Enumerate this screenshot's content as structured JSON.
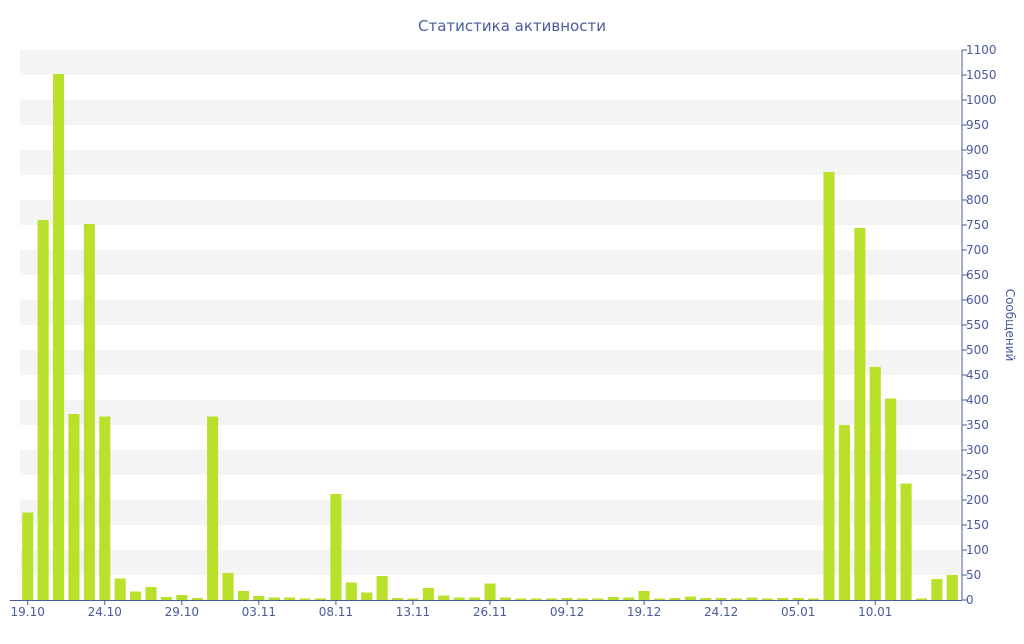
{
  "chart_data": {
    "type": "bar",
    "title": "Статистика активности",
    "ylabel": "Сообщений",
    "xlabel": "",
    "ylim": [
      0,
      1100
    ],
    "y_ticks": [
      0,
      50,
      100,
      150,
      200,
      250,
      300,
      350,
      400,
      450,
      500,
      550,
      600,
      650,
      700,
      750,
      800,
      850,
      900,
      950,
      1000,
      1050,
      1100
    ],
    "y_axis_side": "right",
    "grid": "alternating horizontal bands",
    "x_tick_labels": [
      "19.10",
      "24.10",
      "29.10",
      "03.11",
      "08.11",
      "13.11",
      "26.11",
      "09.12",
      "19.12",
      "24.12",
      "05.01",
      "10.01"
    ],
    "x_tick_indices": [
      0,
      5,
      10,
      15,
      20,
      25,
      30,
      35,
      40,
      45,
      50,
      55
    ],
    "values": [
      175,
      760,
      1052,
      372,
      752,
      367,
      43,
      17,
      26,
      6,
      10,
      4,
      367,
      54,
      18,
      8,
      5,
      5,
      3,
      3,
      212,
      35,
      15,
      48,
      4,
      3,
      24,
      9,
      5,
      5,
      33,
      5,
      3,
      3,
      3,
      4,
      3,
      3,
      6,
      5,
      18,
      3,
      4,
      7,
      4,
      4,
      3,
      5,
      3,
      4,
      4,
      3,
      856,
      350,
      744,
      466,
      403,
      233,
      3,
      42,
      50
    ],
    "bar_color": "#b9e02a"
  }
}
